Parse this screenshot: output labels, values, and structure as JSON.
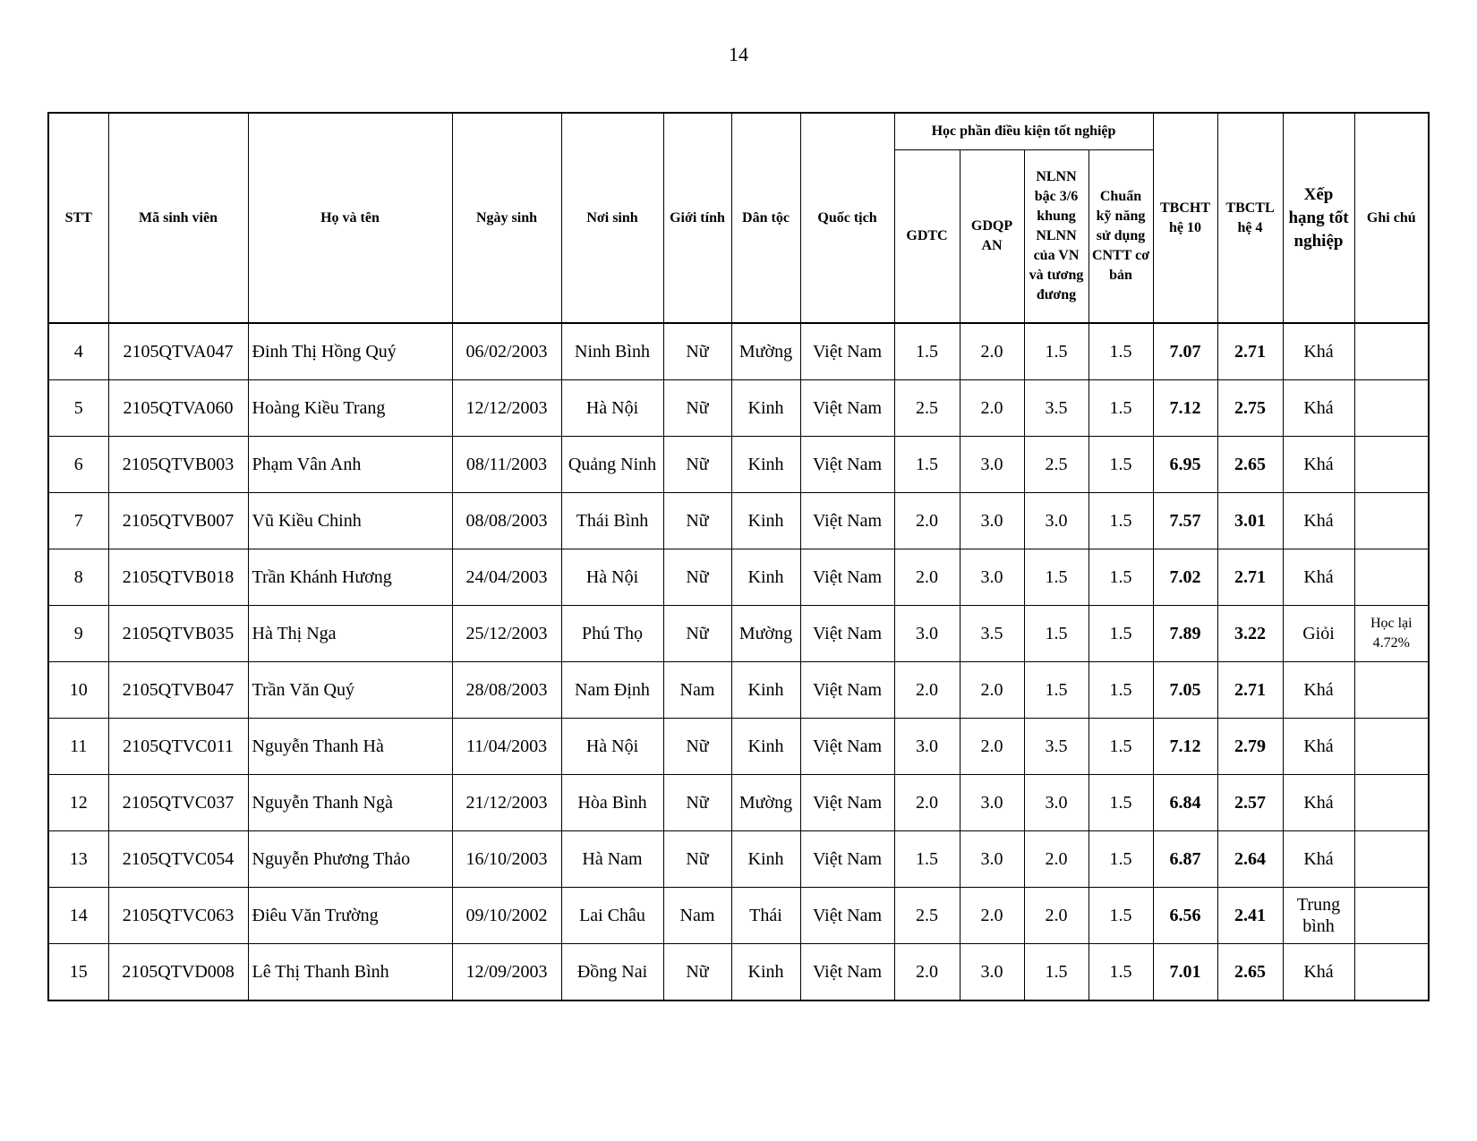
{
  "page_number": "14",
  "header": {
    "stt": "STT",
    "student_id": "Mã sinh viên",
    "full_name": "Họ và tên",
    "dob": "Ngày sinh",
    "birthplace": "Nơi sinh",
    "gender": "Giới tính",
    "ethnicity": "Dân tộc",
    "nationality": "Quốc tịch",
    "group": "Học phần điều kiện tốt nghiệp",
    "gdtc": "GDTC",
    "gdqp": "GDQP AN",
    "nlnn": "NLNN bậc 3/6 khung NLNN của VN và tương đương",
    "cntt": "Chuẩn kỹ năng sử dụng CNTT cơ bản",
    "tbcht": "TBCHT hệ 10",
    "tbctl": "TBCTL hệ 4",
    "rank": "Xếp hạng tốt nghiệp",
    "note": "Ghi chú"
  },
  "rows": [
    [
      "4",
      "2105QTVA047",
      "Đinh Thị Hồng Quý",
      "06/02/2003",
      "Ninh Bình",
      "Nữ",
      "Mường",
      "Việt Nam",
      "1.5",
      "2.0",
      "1.5",
      "1.5",
      "7.07",
      "2.71",
      "Khá",
      ""
    ],
    [
      "5",
      "2105QTVA060",
      "Hoàng Kiều Trang",
      "12/12/2003",
      "Hà Nội",
      "Nữ",
      "Kinh",
      "Việt Nam",
      "2.5",
      "2.0",
      "3.5",
      "1.5",
      "7.12",
      "2.75",
      "Khá",
      ""
    ],
    [
      "6",
      "2105QTVB003",
      "Phạm Vân Anh",
      "08/11/2003",
      "Quảng Ninh",
      "Nữ",
      "Kinh",
      "Việt Nam",
      "1.5",
      "3.0",
      "2.5",
      "1.5",
      "6.95",
      "2.65",
      "Khá",
      ""
    ],
    [
      "7",
      "2105QTVB007",
      "Vũ Kiều Chinh",
      "08/08/2003",
      "Thái Bình",
      "Nữ",
      "Kinh",
      "Việt Nam",
      "2.0",
      "3.0",
      "3.0",
      "1.5",
      "7.57",
      "3.01",
      "Khá",
      ""
    ],
    [
      "8",
      "2105QTVB018",
      "Trần Khánh Hương",
      "24/04/2003",
      "Hà Nội",
      "Nữ",
      "Kinh",
      "Việt Nam",
      "2.0",
      "3.0",
      "1.5",
      "1.5",
      "7.02",
      "2.71",
      "Khá",
      ""
    ],
    [
      "9",
      "2105QTVB035",
      "Hà Thị Nga",
      "25/12/2003",
      "Phú Thọ",
      "Nữ",
      "Mường",
      "Việt Nam",
      "3.0",
      "3.5",
      "1.5",
      "1.5",
      "7.89",
      "3.22",
      "Giỏi",
      "Học lại 4.72%"
    ],
    [
      "10",
      "2105QTVB047",
      "Trần Văn Quý",
      "28/08/2003",
      "Nam Định",
      "Nam",
      "Kinh",
      "Việt Nam",
      "2.0",
      "2.0",
      "1.5",
      "1.5",
      "7.05",
      "2.71",
      "Khá",
      ""
    ],
    [
      "11",
      "2105QTVC011",
      "Nguyễn Thanh Hà",
      "11/04/2003",
      "Hà Nội",
      "Nữ",
      "Kinh",
      "Việt Nam",
      "3.0",
      "2.0",
      "3.5",
      "1.5",
      "7.12",
      "2.79",
      "Khá",
      ""
    ],
    [
      "12",
      "2105QTVC037",
      "Nguyễn Thanh Ngà",
      "21/12/2003",
      "Hòa Bình",
      "Nữ",
      "Mường",
      "Việt Nam",
      "2.0",
      "3.0",
      "3.0",
      "1.5",
      "6.84",
      "2.57",
      "Khá",
      ""
    ],
    [
      "13",
      "2105QTVC054",
      "Nguyễn Phương Thảo",
      "16/10/2003",
      "Hà Nam",
      "Nữ",
      "Kinh",
      "Việt Nam",
      "1.5",
      "3.0",
      "2.0",
      "1.5",
      "6.87",
      "2.64",
      "Khá",
      ""
    ],
    [
      "14",
      "2105QTVC063",
      "Điêu Văn Trường",
      "09/10/2002",
      "Lai Châu",
      "Nam",
      "Thái",
      "Việt Nam",
      "2.5",
      "2.0",
      "2.0",
      "1.5",
      "6.56",
      "2.41",
      "Trung bình",
      ""
    ],
    [
      "15",
      "2105QTVD008",
      "Lê Thị Thanh Bình",
      "12/09/2003",
      "Đồng Nai",
      "Nữ",
      "Kinh",
      "Việt Nam",
      "2.0",
      "3.0",
      "1.5",
      "1.5",
      "7.01",
      "2.65",
      "Khá",
      ""
    ]
  ]
}
